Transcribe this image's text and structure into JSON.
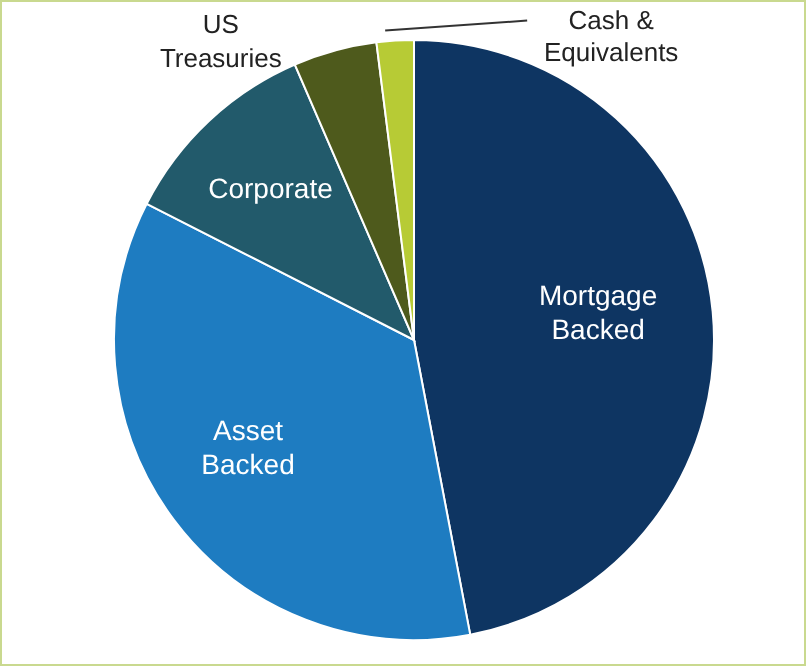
{
  "chart_data": {
    "type": "pie",
    "categories": [
      "Mortgage Backed",
      "Asset Backed",
      "Corporate",
      "US Treasuries",
      "Cash & Equivalents"
    ],
    "values": [
      47,
      35.5,
      11,
      4.5,
      2
    ],
    "colors": [
      "#0e3562",
      "#1e7cc1",
      "#225a6b",
      "#4e5a1c",
      "#b7cb35"
    ]
  }
}
